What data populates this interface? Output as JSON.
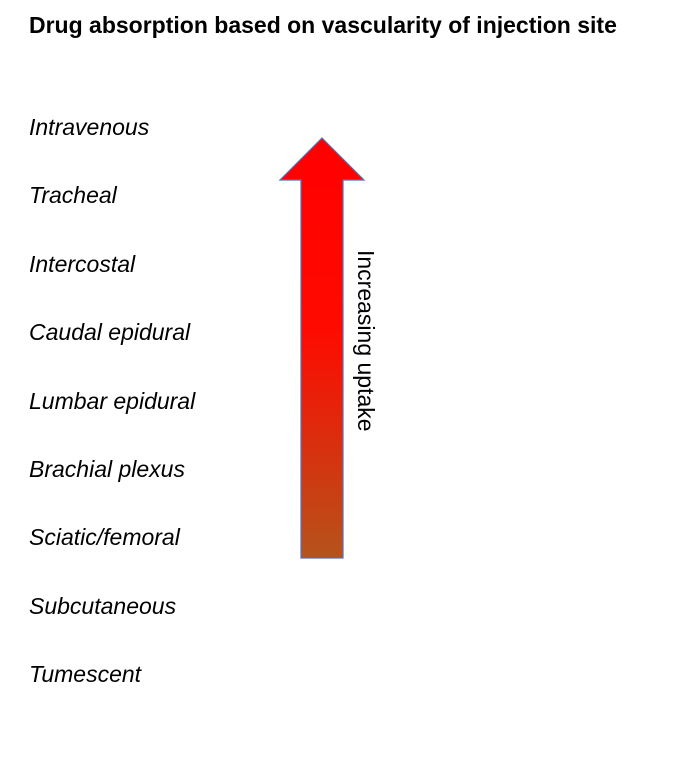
{
  "title": "Drug absorption based on vascularity of injection site",
  "sites": [
    "Intravenous",
    "Tracheal",
    "Intercostal",
    "Caudal epidural",
    "Lumbar epidural",
    "Brachial plexus",
    "Sciatic/femoral",
    "Subcutaneous",
    "Tumescent"
  ],
  "arrow": {
    "label": "Increasing uptake",
    "direction": "up",
    "color_top": "#ff0000",
    "color_bottom": "#b5531c",
    "outline": "#5b6fb5"
  }
}
